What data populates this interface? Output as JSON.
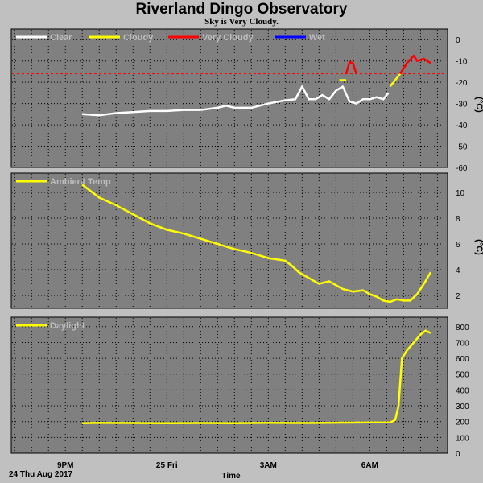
{
  "page": {
    "title": "Riverland Dingo Observatory",
    "subtitle": "Sky is Very Cloudy.",
    "date_label": "24 Thu Aug 2017"
  },
  "chart_data": [
    {
      "type": "line",
      "ylim": [
        -60,
        5
      ],
      "yticks": [
        0,
        -10,
        -20,
        -30,
        -40,
        -50,
        -60
      ],
      "ylabel": "(°C)",
      "threshold": {
        "value": -16,
        "color": "#ff0000",
        "style": "dashed"
      },
      "legend": [
        {
          "name": "Clear",
          "color": "#ffffff"
        },
        {
          "name": "Cloudy",
          "color": "#ffff00"
        },
        {
          "name": "Very Cloudy",
          "color": "#ff0000"
        },
        {
          "name": "Wet",
          "color": "#0000ff"
        }
      ],
      "series": [
        {
          "name": "Clear",
          "color": "#ffffff",
          "x": [
            21.5,
            22.0,
            22.5,
            23.0,
            23.5,
            24.0,
            24.5,
            25.0,
            25.5,
            25.75,
            26.0,
            26.5,
            27.0,
            27.5,
            27.8,
            28.0,
            28.2,
            28.4,
            28.6,
            28.8,
            29.0,
            29.2,
            29.4,
            29.6,
            29.8,
            30.0,
            30.2,
            30.4,
            30.55
          ],
          "values": [
            -35,
            -35.5,
            -34.5,
            -34,
            -33.5,
            -33.5,
            -33,
            -33,
            -32,
            -31,
            -32,
            -32,
            -30,
            -28.5,
            -28,
            -22,
            -28,
            -28,
            -26,
            -28,
            -24,
            -22,
            -29,
            -30,
            -28,
            -28,
            -27,
            -28,
            -25
          ]
        },
        {
          "name": "Cloudy",
          "color": "#ffff00",
          "x": [
            29.1,
            29.3
          ],
          "values": [
            -19,
            -19
          ]
        },
        {
          "name": "Cloudy",
          "color": "#ffff00",
          "x": [
            30.6,
            30.8,
            30.9
          ],
          "values": [
            -22,
            -18,
            -16
          ]
        },
        {
          "name": "Very Cloudy",
          "color": "#ff0000",
          "x": [
            29.3,
            29.4,
            29.5,
            29.6
          ],
          "values": [
            -16,
            -10.5,
            -11,
            -16
          ]
        },
        {
          "name": "Very Cloudy",
          "color": "#ff0000",
          "x": [
            30.9,
            31.1,
            31.3,
            31.4,
            31.6,
            31.8
          ],
          "values": [
            -16,
            -11,
            -7.5,
            -10,
            -9,
            -11
          ]
        }
      ]
    },
    {
      "type": "line",
      "ylim": [
        1,
        11.5
      ],
      "yticks": [
        2,
        4,
        6,
        8,
        10
      ],
      "ylabel": "(°C)",
      "legend": [
        {
          "name": "Ambient Temp",
          "color": "#ffff00"
        }
      ],
      "series": [
        {
          "name": "Ambient Temp",
          "color": "#ffff00",
          "x": [
            21.5,
            22.0,
            22.5,
            23.0,
            23.5,
            24.0,
            24.5,
            25.0,
            25.5,
            26.0,
            26.5,
            27.0,
            27.5,
            27.7,
            27.9,
            28.1,
            28.3,
            28.5,
            28.8,
            29.0,
            29.2,
            29.5,
            29.8,
            30.0,
            30.2,
            30.4,
            30.6,
            30.8,
            31.0,
            31.2,
            31.4,
            31.6,
            31.8
          ],
          "values": [
            10.6,
            9.6,
            9.0,
            8.3,
            7.6,
            7.1,
            6.8,
            6.4,
            6.0,
            5.6,
            5.3,
            4.9,
            4.7,
            4.3,
            3.8,
            3.5,
            3.2,
            2.9,
            3.1,
            2.8,
            2.5,
            2.3,
            2.4,
            2.1,
            1.9,
            1.6,
            1.5,
            1.7,
            1.6,
            1.6,
            2.1,
            2.9,
            3.8
          ]
        }
      ]
    },
    {
      "type": "line",
      "ylim": [
        0,
        860
      ],
      "yticks": [
        0,
        100,
        200,
        300,
        400,
        500,
        600,
        700,
        800
      ],
      "legend": [
        {
          "name": "Daylight",
          "color": "#ffff00"
        }
      ],
      "series": [
        {
          "name": "Daylight",
          "color": "#ffff00",
          "x": [
            21.5,
            22.0,
            23.0,
            24.0,
            25.0,
            26.0,
            27.0,
            28.0,
            29.0,
            30.0,
            30.6,
            30.75,
            30.85,
            30.95,
            31.1,
            31.3,
            31.5,
            31.65,
            31.8
          ],
          "values": [
            190,
            192,
            191,
            190,
            191,
            190,
            192,
            191,
            193,
            195,
            195,
            210,
            300,
            600,
            650,
            700,
            750,
            775,
            760
          ]
        }
      ]
    }
  ],
  "x_axis": {
    "label": "Time",
    "range": [
      19.4,
      32.3
    ],
    "ticks": [
      {
        "value": 21,
        "label": "9PM"
      },
      {
        "value": 24,
        "label": "25 Fri"
      },
      {
        "value": 27,
        "label": "3AM"
      },
      {
        "value": 30,
        "label": "6AM"
      }
    ]
  }
}
